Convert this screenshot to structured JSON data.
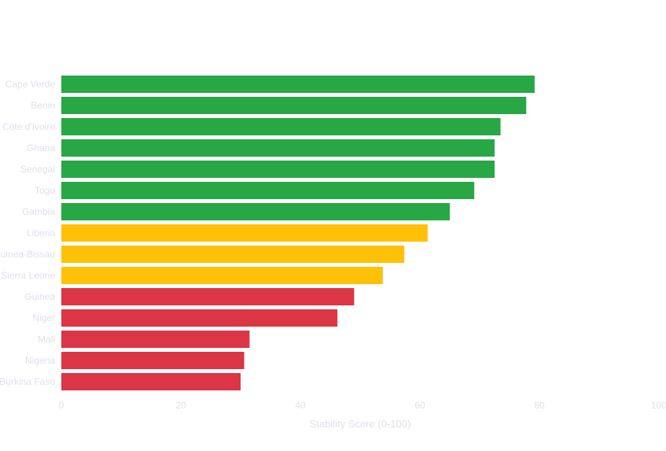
{
  "chart_data": {
    "type": "bar",
    "orientation": "horizontal",
    "title": "",
    "xlabel": "Stability Score (0-100)",
    "ylabel": "",
    "xlim": [
      0,
      100
    ],
    "xticks": [
      0,
      20,
      40,
      60,
      80,
      100
    ],
    "grid": false,
    "categories": [
      "Cape Verde",
      "Benin",
      "Côte d'Ivoire",
      "Ghana",
      "Senegal",
      "Togo",
      "Gambia",
      "Liberia",
      "Guinea-Bissau",
      "Sierra Leone",
      "Guinea",
      "Niger",
      "Mali",
      "Nigeria",
      "Burkina Faso"
    ],
    "values": [
      79.2,
      77.8,
      73.5,
      72.5,
      72.5,
      69.1,
      65.0,
      61.3,
      57.4,
      53.8,
      49.0,
      46.2,
      31.5,
      30.6,
      30.0
    ],
    "bar_colors": [
      "#28a745",
      "#28a745",
      "#28a745",
      "#28a745",
      "#28a745",
      "#28a745",
      "#28a745",
      "#ffc107",
      "#ffc107",
      "#ffc107",
      "#dc3545",
      "#dc3545",
      "#dc3545",
      "#dc3545",
      "#dc3545"
    ]
  }
}
